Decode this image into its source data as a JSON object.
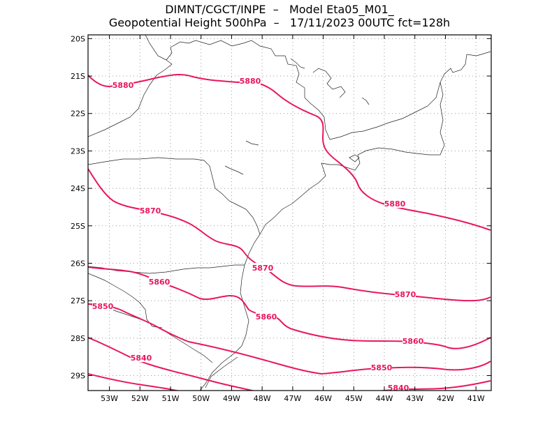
{
  "title": {
    "line1": "DIMNT/CGCT/INPE  –   Model Eta05_M01_",
    "line2": "Geopotential Height 500hPa  –   17/11/2023 00UTC fct=128h"
  },
  "map": {
    "lon_range": [
      -53.7,
      -40.5
    ],
    "lat_range": [
      -29.4,
      -19.9
    ],
    "lat_ticks": [
      "20S",
      "21S",
      "22S",
      "23S",
      "24S",
      "25S",
      "26S",
      "27S",
      "28S",
      "29S"
    ],
    "lon_ticks": [
      "53W",
      "52W",
      "51W",
      "50W",
      "49W",
      "48W",
      "47W",
      "46W",
      "45W",
      "44W",
      "43W",
      "42W",
      "41W"
    ],
    "grid": "dotted",
    "contour_color": "#e8175d",
    "border_color": "#000000"
  },
  "contours": [
    {
      "name": "5880",
      "labels": [
        "5880",
        "5880",
        "5880"
      ]
    },
    {
      "name": "5870",
      "labels": [
        "5870",
        "5870",
        "5870"
      ]
    },
    {
      "name": "5860",
      "labels": [
        "5860",
        "5860",
        "5860"
      ]
    },
    {
      "name": "5850",
      "labels": [
        "5850",
        "5850"
      ]
    },
    {
      "name": "5840",
      "labels": [
        "5840",
        "5840"
      ]
    }
  ]
}
